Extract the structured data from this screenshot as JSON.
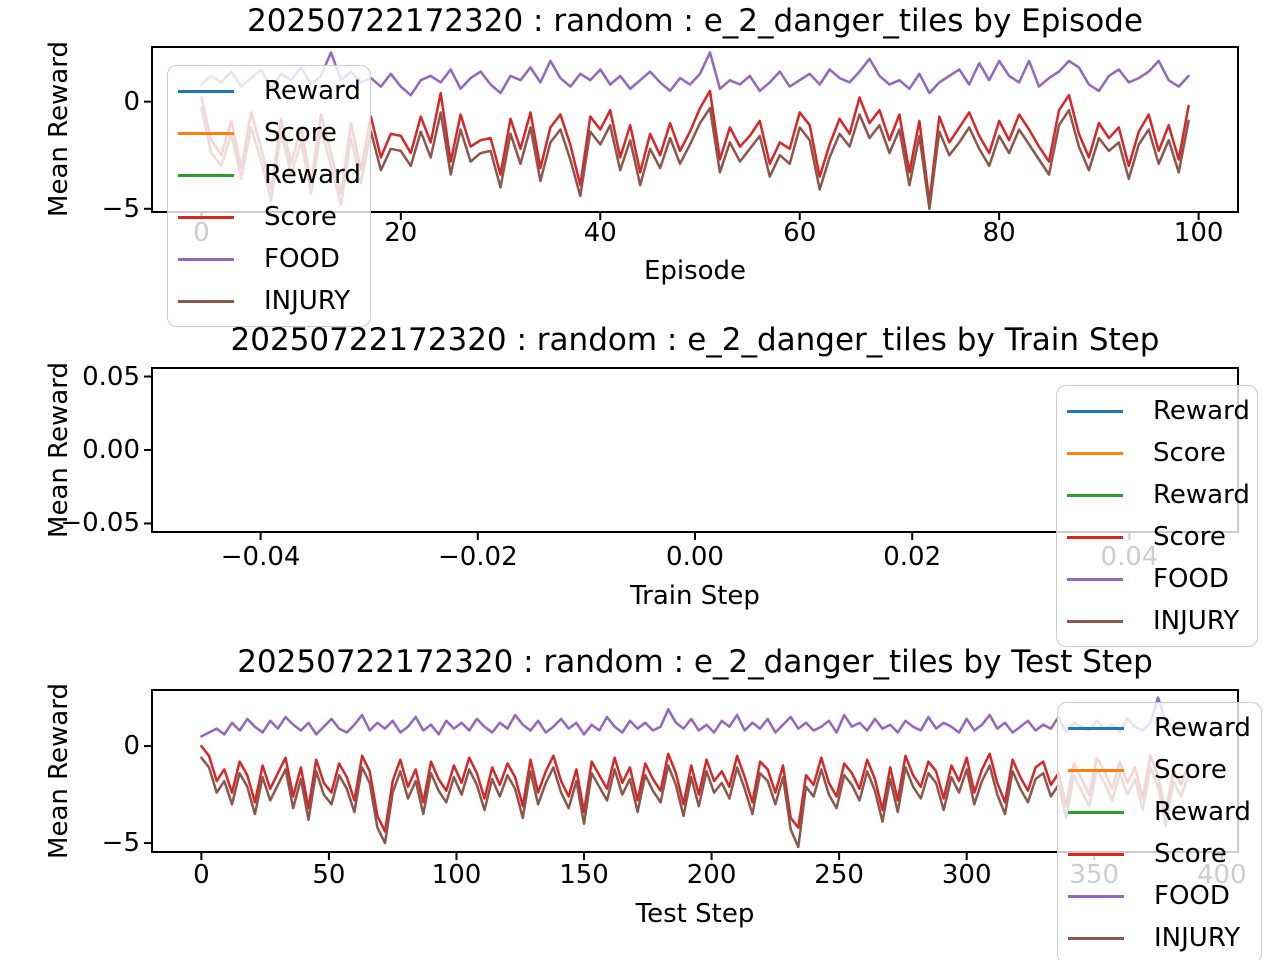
{
  "chart_data": [
    {
      "type": "line",
      "title": "20250722172320 : random : e_2_danger_tiles by Episode",
      "xlabel": "Episode",
      "ylabel": "Mean Reward",
      "xlim": [
        -4.95,
        103.95
      ],
      "ylim": [
        -5.15,
        2.55
      ],
      "xticks": [
        0,
        20,
        40,
        60,
        80,
        100
      ],
      "xtick_labels": [
        "0",
        "20",
        "40",
        "60",
        "80",
        "100"
      ],
      "yticks": [
        0,
        -5
      ],
      "ytick_labels": [
        "0",
        "−5"
      ],
      "legend_position": "upper left",
      "grid": false,
      "x_start": 0,
      "x_step": 1,
      "series": [
        {
          "name": "Reward",
          "color": "#1f77b4",
          "values": []
        },
        {
          "name": "Score",
          "color": "#ff7f0e",
          "values": []
        },
        {
          "name": "Reward",
          "color": "#2ca02c",
          "values": []
        },
        {
          "name": "Score",
          "color": "#d62728",
          "values": [
            0.2,
            -1.8,
            -2.5,
            -0.9,
            -3.1,
            -0.5,
            -2.2,
            -4.1,
            -0.8,
            -2.9,
            -1.2,
            -3.8,
            -0.6,
            -2.4,
            -4.3,
            -1.0,
            -3.2,
            -0.7,
            -2.6,
            -1.5,
            -1.6,
            -2.4,
            -0.7,
            -1.9,
            0.4,
            -2.8,
            -0.6,
            -2.1,
            -1.8,
            -1.7,
            -3.4,
            -0.8,
            -2.2,
            -0.5,
            -3.1,
            -1.2,
            -0.6,
            -2.0,
            -3.9,
            -0.7,
            -1.3,
            -0.4,
            -2.6,
            -1.1,
            -3.3,
            -1.5,
            -2.5,
            -1.0,
            -2.3,
            -1.4,
            -0.3,
            0.5,
            -2.7,
            -1.2,
            -2.1,
            -1.6,
            -0.9,
            -2.9,
            -1.9,
            -2.2,
            -0.5,
            -1.1,
            -3.5,
            -2.0,
            -0.8,
            -1.5,
            0.2,
            -1.0,
            -0.4,
            -1.8,
            -0.6,
            -3.3,
            -0.9,
            -4.7,
            -0.7,
            -1.9,
            -1.2,
            -0.5,
            -1.6,
            -2.4,
            -0.9,
            -1.8,
            -0.6,
            -1.3,
            -2.1,
            -2.8,
            -0.4,
            0.3,
            -1.5,
            -2.6,
            -1.0,
            -1.7,
            -1.2,
            -3.0,
            -1.4,
            -0.6,
            -2.3,
            -1.1,
            -2.7,
            -0.2
          ]
        },
        {
          "name": "FOOD",
          "color": "#9467bd",
          "values": [
            0.8,
            1.2,
            0.9,
            1.4,
            0.7,
            1.1,
            1.5,
            0.6,
            1.3,
            1.0,
            1.6,
            0.8,
            1.2,
            2.3,
            1.0,
            1.4,
            0.9,
            1.1,
            0.7,
            1.3,
            0.7,
            0.3,
            1.0,
            1.2,
            0.9,
            1.5,
            0.6,
            1.1,
            1.4,
            0.8,
            0.4,
            1.2,
            1.0,
            1.6,
            0.9,
            1.9,
            1.1,
            0.7,
            1.3,
            1.0,
            1.5,
            0.8,
            1.2,
            0.6,
            1.0,
            1.4,
            0.9,
            0.5,
            1.1,
            0.8,
            1.3,
            2.3,
            0.6,
            1.0,
            0.8,
            1.2,
            0.5,
            0.9,
            1.4,
            0.7,
            1.0,
            1.3,
            0.8,
            1.5,
            1.1,
            0.9,
            1.4,
            2.0,
            1.2,
            0.8,
            1.0,
            0.6,
            1.3,
            0.4,
            0.9,
            1.2,
            1.5,
            0.8,
            1.8,
            1.0,
            1.9,
            1.2,
            0.9,
            1.9,
            0.7,
            1.1,
            1.4,
            1.9,
            1.6,
            0.8,
            0.5,
            1.2,
            1.5,
            0.9,
            1.1,
            1.4,
            1.9,
            1.0,
            0.7,
            1.2
          ]
        },
        {
          "name": "INJURY",
          "color": "#8c564b",
          "values": [
            -0.3,
            -2.4,
            -3.0,
            -1.5,
            -3.6,
            -1.2,
            -2.8,
            -4.6,
            -1.4,
            -3.4,
            -1.9,
            -4.3,
            -1.3,
            -3.0,
            -4.8,
            -1.7,
            -3.8,
            -1.4,
            -3.2,
            -2.2,
            -2.3,
            -3.0,
            -1.4,
            -2.6,
            -0.5,
            -3.4,
            -1.3,
            -2.8,
            -2.4,
            -2.3,
            -4.0,
            -1.5,
            -2.9,
            -1.2,
            -3.7,
            -1.9,
            -1.3,
            -2.7,
            -4.4,
            -1.4,
            -2.0,
            -1.1,
            -3.2,
            -1.8,
            -3.9,
            -2.2,
            -3.1,
            -1.7,
            -2.9,
            -2.0,
            -1.0,
            -0.3,
            -3.3,
            -1.9,
            -2.8,
            -2.2,
            -1.6,
            -3.5,
            -2.5,
            -2.9,
            -1.2,
            -1.8,
            -4.1,
            -2.6,
            -1.5,
            -2.1,
            -0.6,
            -1.7,
            -1.1,
            -2.4,
            -1.3,
            -3.9,
            -1.6,
            -5.0,
            -1.4,
            -2.5,
            -1.9,
            -1.2,
            -2.2,
            -3.0,
            -1.6,
            -2.4,
            -1.3,
            -2.0,
            -2.7,
            -3.4,
            -1.1,
            -0.4,
            -2.1,
            -3.2,
            -1.7,
            -2.3,
            -1.9,
            -3.6,
            -2.0,
            -1.3,
            -2.9,
            -1.8,
            -3.3,
            -0.9
          ]
        }
      ]
    },
    {
      "type": "line",
      "title": "20250722172320 : random : e_2_danger_tiles by Train Step",
      "xlabel": "Train Step",
      "ylabel": "Mean Reward",
      "xlim": [
        -0.05,
        0.05
      ],
      "ylim": [
        -0.0558,
        0.0558
      ],
      "xticks": [
        -0.04,
        -0.02,
        0,
        0.02,
        0.04
      ],
      "xtick_labels": [
        "−0.04",
        "−0.02",
        "0.00",
        "0.02",
        "0.04"
      ],
      "yticks": [
        0.05,
        0,
        -0.05
      ],
      "ytick_labels": [
        "0.05",
        "0.00",
        "−0.05"
      ],
      "legend_position": "center right",
      "grid": false,
      "x_start": 0,
      "x_step": 1,
      "series": [
        {
          "name": "Reward",
          "color": "#1f77b4",
          "values": []
        },
        {
          "name": "Score",
          "color": "#ff7f0e",
          "values": []
        },
        {
          "name": "Reward",
          "color": "#2ca02c",
          "values": []
        },
        {
          "name": "Score",
          "color": "#d62728",
          "values": []
        },
        {
          "name": "FOOD",
          "color": "#9467bd",
          "values": []
        },
        {
          "name": "INJURY",
          "color": "#8c564b",
          "values": []
        }
      ]
    },
    {
      "type": "line",
      "title": "20250722172320 : random : e_2_danger_tiles by Test Step",
      "xlabel": "Test Step",
      "ylabel": "Mean Reward",
      "xlim": [
        -19.35,
        406.35
      ],
      "ylim": [
        -5.46,
        2.89
      ],
      "xticks": [
        0,
        50,
        100,
        150,
        200,
        250,
        300,
        350,
        400
      ],
      "xtick_labels": [
        "0",
        "50",
        "100",
        "150",
        "200",
        "250",
        "300",
        "350",
        "400"
      ],
      "yticks": [
        0,
        -5
      ],
      "ytick_labels": [
        "0",
        "−5"
      ],
      "legend_position": "center right",
      "grid": false,
      "x_start": 0,
      "x_step": 3,
      "series": [
        {
          "name": "Reward",
          "color": "#1f77b4",
          "values": []
        },
        {
          "name": "Score",
          "color": "#ff7f0e",
          "values": []
        },
        {
          "name": "Reward",
          "color": "#2ca02c",
          "values": []
        },
        {
          "name": "Score",
          "color": "#d62728",
          "values": [
            0.0,
            -0.5,
            -1.8,
            -1.2,
            -2.4,
            -0.8,
            -1.5,
            -2.9,
            -1.0,
            -2.2,
            -1.4,
            -0.6,
            -2.6,
            -1.1,
            -3.2,
            -0.7,
            -1.9,
            -2.4,
            -0.9,
            -1.6,
            -2.8,
            -0.5,
            -1.3,
            -3.6,
            -4.4,
            -1.8,
            -0.7,
            -2.1,
            -1.2,
            -2.9,
            -0.8,
            -1.7,
            -2.3,
            -1.0,
            -1.9,
            -0.6,
            -1.4,
            -2.7,
            -1.1,
            -2.0,
            -0.9,
            -1.6,
            -3.1,
            -0.7,
            -2.4,
            -1.3,
            -0.5,
            -1.8,
            -2.6,
            -1.2,
            -3.4,
            -0.8,
            -1.5,
            -2.2,
            -0.6,
            -1.9,
            -1.1,
            -2.8,
            -0.9,
            -1.7,
            -2.3,
            -0.4,
            -1.4,
            -3.0,
            -1.0,
            -2.5,
            -0.7,
            -1.8,
            -1.3,
            -2.1,
            -0.5,
            -1.6,
            -2.9,
            -0.8,
            -1.2,
            -2.4,
            -1.0,
            -3.7,
            -4.2,
            -1.5,
            -2.0,
            -0.6,
            -1.9,
            -2.6,
            -0.9,
            -1.4,
            -2.2,
            -0.7,
            -1.7,
            -3.3,
            -1.1,
            -2.8,
            -0.5,
            -1.5,
            -2.1,
            -0.8,
            -1.3,
            -2.7,
            -1.0,
            -1.8,
            -0.6,
            -2.4,
            -1.2,
            -0.4,
            -1.9,
            -2.9,
            -0.7,
            -1.6,
            -2.3,
            -1.1,
            -0.8,
            -2.0,
            -1.4,
            -3.1,
            -0.9,
            -1.7,
            -2.5,
            -0.6,
            -1.3,
            -2.2,
            -0.8,
            -1.9,
            -1.1,
            -2.7,
            -0.5,
            -1.5,
            -3.5,
            -1.2,
            -2.0,
            -0.9
          ]
        },
        {
          "name": "FOOD",
          "color": "#9467bd",
          "values": [
            0.5,
            0.7,
            0.9,
            0.6,
            1.2,
            0.8,
            1.4,
            1.0,
            0.7,
            1.3,
            0.9,
            1.5,
            1.1,
            0.8,
            1.2,
            0.6,
            1.0,
            1.4,
            0.9,
            0.7,
            1.1,
            1.6,
            0.8,
            1.2,
            0.9,
            1.3,
            0.7,
            1.0,
            1.5,
            0.8,
            1.1,
            0.6,
            1.3,
            0.9,
            1.2,
            0.8,
            1.4,
            1.0,
            0.7,
            1.2,
            0.9,
            1.6,
            1.1,
            0.8,
            1.3,
            0.7,
            1.0,
            1.4,
            0.9,
            1.2,
            0.6,
            1.1,
            0.8,
            1.5,
            1.0,
            0.7,
            1.3,
            0.9,
            1.2,
            0.8,
            1.0,
            1.9,
            1.2,
            0.9,
            1.4,
            0.8,
            1.1,
            0.7,
            1.3,
            1.0,
            1.6,
            0.8,
            1.2,
            0.9,
            1.4,
            0.7,
            1.1,
            1.5,
            0.9,
            1.2,
            0.8,
            1.0,
            1.3,
            0.7,
            1.6,
            1.0,
            1.2,
            0.8,
            1.4,
            0.9,
            1.1,
            0.7,
            1.3,
            1.0,
            0.8,
            1.5,
            0.9,
            1.2,
            1.0,
            0.7,
            1.4,
            0.8,
            1.1,
            1.6,
            0.9,
            1.2,
            0.7,
            1.0,
            1.3,
            0.8,
            1.1,
            0.9,
            1.5,
            0.7,
            1.2,
            1.0,
            0.8,
            1.3,
            0.9,
            1.1,
            0.7,
            1.4,
            1.0,
            0.8,
            1.2,
            2.5,
            1.3,
            0.9,
            1.1,
            0.8
          ]
        },
        {
          "name": "INJURY",
          "color": "#8c564b",
          "values": [
            -0.6,
            -1.1,
            -2.4,
            -1.8,
            -3.0,
            -1.4,
            -2.1,
            -3.5,
            -1.6,
            -2.8,
            -2.0,
            -1.2,
            -3.2,
            -1.7,
            -3.8,
            -1.3,
            -2.5,
            -3.0,
            -1.5,
            -2.2,
            -3.4,
            -1.1,
            -1.9,
            -4.2,
            -5.0,
            -2.4,
            -1.3,
            -2.7,
            -1.8,
            -3.5,
            -1.4,
            -2.3,
            -2.9,
            -1.6,
            -2.5,
            -1.2,
            -2.0,
            -3.3,
            -1.7,
            -2.6,
            -1.5,
            -2.2,
            -3.7,
            -1.3,
            -3.0,
            -1.9,
            -1.1,
            -2.4,
            -3.2,
            -1.8,
            -4.0,
            -1.4,
            -2.1,
            -2.8,
            -1.2,
            -2.5,
            -1.7,
            -3.4,
            -1.5,
            -2.3,
            -2.9,
            -1.0,
            -2.0,
            -3.6,
            -1.6,
            -3.1,
            -1.3,
            -2.4,
            -1.9,
            -2.7,
            -1.1,
            -2.2,
            -3.5,
            -1.4,
            -1.8,
            -3.0,
            -1.6,
            -4.3,
            -5.2,
            -2.1,
            -2.6,
            -1.2,
            -2.5,
            -3.2,
            -1.5,
            -2.0,
            -2.8,
            -1.3,
            -2.3,
            -3.9,
            -1.7,
            -3.4,
            -1.1,
            -2.1,
            -2.7,
            -1.4,
            -1.9,
            -3.3,
            -1.6,
            -2.4,
            -1.2,
            -3.0,
            -1.8,
            -1.0,
            -2.5,
            -3.5,
            -1.3,
            -2.2,
            -2.9,
            -1.7,
            -1.4,
            -2.6,
            -2.0,
            -3.7,
            -1.5,
            -2.3,
            -3.1,
            -1.2,
            -1.9,
            -2.8,
            -1.4,
            -2.5,
            -1.7,
            -3.3,
            -1.1,
            -2.1,
            -4.1,
            -1.8,
            -2.6,
            -1.5
          ]
        }
      ]
    }
  ]
}
